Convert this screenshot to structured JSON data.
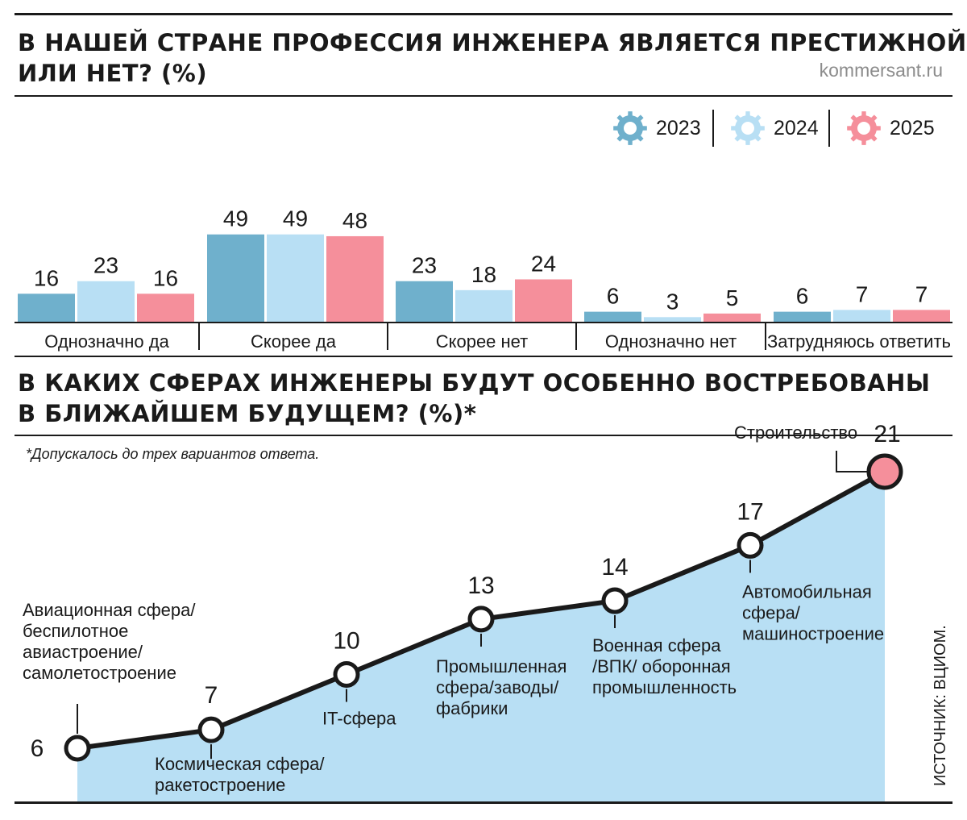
{
  "header": {
    "title_line1": "В НАШЕЙ СТРАНЕ ПРОФЕССИЯ ИНЖЕНЕРА ЯВЛЯЕТСЯ ПРЕСТИЖНОЙ",
    "title_line2": "ИЛИ НЕТ? (%)",
    "source_site": "kommersant.ru"
  },
  "section2": {
    "title_line1": "В КАКИХ СФЕРАХ ИНЖЕНЕРЫ БУДУТ ОСОБЕННО ВОСТРЕБОВАНЫ",
    "title_line2": "В БЛИЖАЙШЕМ БУДУЩЕМ? (%)*",
    "footnote": "*Допускалось до трех вариантов ответа.",
    "source": "ИСТОЧНИК: ВЦИОМ."
  },
  "legend": [
    {
      "label": "2023",
      "color": "#6fb0cc"
    },
    {
      "label": "2024",
      "color": "#b8dff4"
    },
    {
      "label": "2025",
      "color": "#f58f9b"
    }
  ],
  "chart_data": [
    {
      "type": "bar",
      "title": "В НАШЕЙ СТРАНЕ ПРОФЕССИЯ ИНЖЕНЕРА ЯВЛЯЕТСЯ ПРЕСТИЖНОЙ ИЛИ НЕТ? (%)",
      "categories": [
        "Однозначно да",
        "Скорее да",
        "Скорее нет",
        "Однозначно нет",
        "Затрудняюсь ответить"
      ],
      "series": [
        {
          "name": "2023",
          "values": [
            16,
            49,
            23,
            6,
            6
          ],
          "color": "#6fb0cc"
        },
        {
          "name": "2024",
          "values": [
            23,
            49,
            18,
            3,
            7
          ],
          "color": "#b8dff4"
        },
        {
          "name": "2025",
          "values": [
            16,
            48,
            24,
            5,
            7
          ],
          "color": "#f58f9b"
        }
      ],
      "ylim": [
        0,
        50
      ],
      "grid": false,
      "legend_position": "top-right"
    },
    {
      "type": "line",
      "title": "В КАКИХ СФЕРАХ ИНЖЕНЕРЫ БУДУТ ОСОБЕННО ВОСТРЕБОВАНЫ В БЛИЖАЙШЕМ БУДУЩЕМ? (%)*",
      "points": [
        {
          "label": [
            "Авиационная сфера/",
            "беспилотное",
            "авиастроение/",
            "самолетостроение"
          ],
          "value": 6
        },
        {
          "label": [
            "Космическая сфера/",
            "ракетостроение"
          ],
          "value": 7
        },
        {
          "label": [
            "IT-сфера"
          ],
          "value": 10
        },
        {
          "label": [
            "Промышленная",
            "сфера/заводы/",
            "фабрики"
          ],
          "value": 13
        },
        {
          "label": [
            "Военная сфера",
            "/ВПК/ оборонная",
            "промышленность"
          ],
          "value": 14
        },
        {
          "label": [
            "Автомобильная",
            "сфера/",
            "машиностроение"
          ],
          "value": 17
        },
        {
          "label": [
            "Строительство"
          ],
          "value": 21
        }
      ],
      "highlight_color": "#f58f9b",
      "area_color": "#b8dff4",
      "ylim": [
        6,
        21
      ]
    }
  ]
}
